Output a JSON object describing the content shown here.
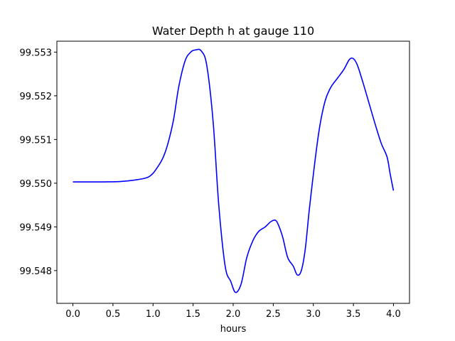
{
  "chart_data": {
    "type": "line",
    "title": "Water Depth h at gauge 110",
    "xlabel": "hours",
    "ylabel": "",
    "xlim": [
      -0.2,
      4.2
    ],
    "ylim": [
      99.54725,
      99.55325
    ],
    "xticks": [
      0.0,
      0.5,
      1.0,
      1.5,
      2.0,
      2.5,
      3.0,
      3.5,
      4.0
    ],
    "xtick_labels": [
      "0.0",
      "0.5",
      "1.0",
      "1.5",
      "2.0",
      "2.5",
      "3.0",
      "3.5",
      "4.0"
    ],
    "yticks": [
      99.548,
      99.549,
      99.55,
      99.551,
      99.552,
      99.553
    ],
    "ytick_labels": [
      "99.548",
      "99.549",
      "99.550",
      "99.551",
      "99.552",
      "99.553"
    ],
    "grid": false,
    "legend": "none",
    "series": [
      {
        "name": "h",
        "color": "#0000ff",
        "x": [
          0.0,
          0.2,
          0.4,
          0.6,
          0.8,
          0.95,
          1.05,
          1.15,
          1.25,
          1.32,
          1.4,
          1.47,
          1.53,
          1.6,
          1.67,
          1.75,
          1.82,
          1.9,
          1.97,
          2.03,
          2.1,
          2.17,
          2.25,
          2.32,
          2.4,
          2.47,
          2.53,
          2.57,
          2.62,
          2.68,
          2.75,
          2.8,
          2.85,
          2.9,
          2.95,
          3.02,
          3.08,
          3.15,
          3.22,
          3.3,
          3.38,
          3.45,
          3.5,
          3.55,
          3.62,
          3.7,
          3.78,
          3.85,
          3.92,
          3.96,
          4.0
        ],
        "y": [
          99.55003,
          99.55003,
          99.55003,
          99.55004,
          99.55008,
          99.55015,
          99.55035,
          99.5507,
          99.5514,
          99.5522,
          99.5528,
          99.553,
          99.55305,
          99.55303,
          99.5527,
          99.5514,
          99.5495,
          99.5481,
          99.54775,
          99.5475,
          99.5477,
          99.5483,
          99.5487,
          99.5489,
          99.549,
          99.54912,
          99.54915,
          99.54902,
          99.54875,
          99.5483,
          99.5481,
          99.5479,
          99.548,
          99.5485,
          99.5494,
          99.5505,
          99.5513,
          99.5519,
          99.5522,
          99.5524,
          99.5526,
          99.55283,
          99.55285,
          99.5527,
          99.5523,
          99.5518,
          99.5513,
          99.5509,
          99.5506,
          99.5502,
          99.54983
        ]
      }
    ]
  }
}
